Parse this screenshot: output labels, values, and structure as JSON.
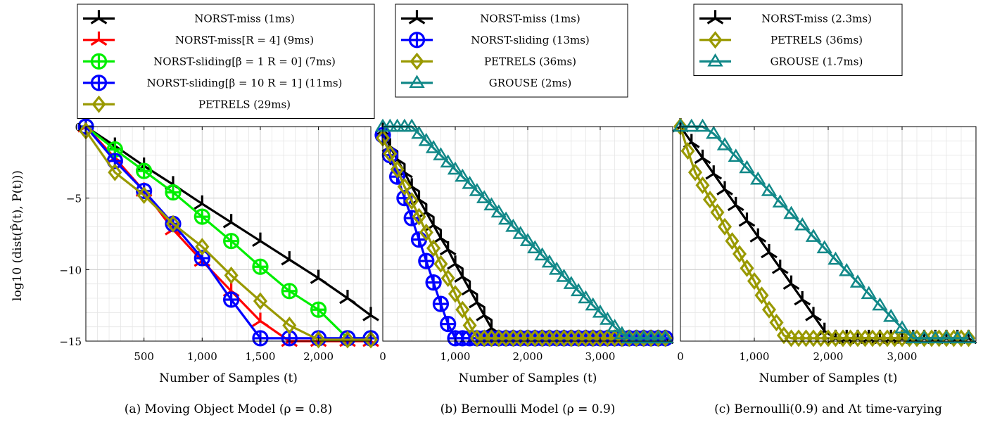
{
  "ylabel": "log10 (dist(P̂(t), P(t)))",
  "charts": [
    {
      "type": "line",
      "caption": "(a) Moving Object Model (ρ = 0.8)",
      "xlabel": "Number of Samples (t)",
      "xlim": [
        0,
        2450
      ],
      "ylim": [
        -15,
        0
      ],
      "xticks": [
        500,
        1000,
        1500,
        2000
      ],
      "xtick_labels": [
        "500",
        "1,000",
        "1,500",
        "2,000"
      ],
      "yticks": [
        0,
        -5,
        -10,
        -15
      ],
      "ytick_labels": [
        "0",
        "−5",
        "−10",
        "−15"
      ],
      "legend": "top",
      "grid": true,
      "series": [
        {
          "name": "NORST-miss (1ms)",
          "color": "#000000",
          "marker": "tri",
          "x": [
            0,
            250,
            500,
            750,
            1000,
            1250,
            1500,
            1750,
            2000,
            2250,
            2450
          ],
          "y": [
            0,
            -1.35,
            -2.75,
            -4.05,
            -5.4,
            -6.7,
            -8.0,
            -9.3,
            -10.6,
            -12.0,
            -13.2
          ]
        },
        {
          "name": "NORST-miss[R = 4] (9ms)",
          "color": "#ff0000",
          "marker": "tri",
          "x": [
            0,
            250,
            500,
            750,
            1000,
            1250,
            1500,
            1750,
            2000,
            2250,
            2450
          ],
          "y": [
            0,
            -2.2,
            -4.5,
            -7.2,
            -9.4,
            -11.5,
            -13.6,
            -15.0,
            -15.0,
            -15.0,
            -15.0
          ]
        },
        {
          "name": "NORST-sliding[β = 1 R = 0] (7ms)",
          "color": "#00ee00",
          "marker": "oplus",
          "x": [
            0,
            250,
            500,
            750,
            1000,
            1250,
            1500,
            1750,
            2000,
            2250,
            2450
          ],
          "y": [
            0,
            -1.6,
            -3.1,
            -4.6,
            -6.3,
            -8.0,
            -9.8,
            -11.5,
            -12.8,
            -14.8,
            -14.8
          ]
        },
        {
          "name": "NORST-sliding[β = 10 R = 1] (11ms)",
          "color": "#0000ff",
          "marker": "oplus",
          "x": [
            0,
            250,
            500,
            750,
            1000,
            1250,
            1500,
            1750,
            2000,
            2250,
            2450
          ],
          "y": [
            0,
            -2.4,
            -4.5,
            -6.8,
            -9.2,
            -12.1,
            -14.8,
            -14.8,
            -14.8,
            -14.8,
            -14.8
          ]
        },
        {
          "name": "PETRELS (29ms)",
          "color": "#999900",
          "marker": "diamond",
          "x": [
            0,
            250,
            500,
            750,
            1000,
            1250,
            1500,
            1750,
            2000,
            2250,
            2450
          ],
          "y": [
            -0.3,
            -3.2,
            -4.8,
            -6.8,
            -8.4,
            -10.4,
            -12.2,
            -13.9,
            -14.9,
            -14.9,
            -14.9
          ]
        }
      ]
    },
    {
      "type": "line",
      "caption": "(b) Bernoulli Model (ρ = 0.9)",
      "xlabel": "Number of Samples (t)",
      "xlim": [
        0,
        4000
      ],
      "ylim": [
        -15,
        0
      ],
      "xticks": [
        0,
        1000,
        2000,
        3000
      ],
      "xtick_labels": [
        "0",
        "1,000",
        "2,000",
        "3,000"
      ],
      "yticks": [],
      "ytick_labels": [],
      "legend": "top",
      "grid": true,
      "series": [
        {
          "name": "NORST-miss (1ms)",
          "color": "#000000",
          "marker": "tri",
          "x": [
            0,
            100,
            200,
            300,
            400,
            500,
            600,
            700,
            800,
            900,
            1000,
            1100,
            1200,
            1300,
            1400,
            1500,
            1600,
            1700,
            1800,
            1900,
            2000,
            2100,
            2200,
            2300,
            2400,
            2500,
            2600,
            2700,
            2800,
            2900,
            3000,
            3100,
            3200,
            3300,
            3400,
            3500,
            3600,
            3700,
            3800,
            3900
          ],
          "y": [
            -0.3,
            -1.4,
            -2.3,
            -3.2,
            -4.2,
            -5.1,
            -6.0,
            -6.9,
            -7.8,
            -8.6,
            -9.6,
            -10.5,
            -11.4,
            -12.3,
            -13.2,
            -14.1,
            -14.8,
            -14.8,
            -14.8,
            -14.8,
            -14.8,
            -14.8,
            -14.8,
            -14.8,
            -14.8,
            -14.8,
            -14.8,
            -14.8,
            -14.8,
            -14.8,
            -14.8,
            -14.8,
            -14.8,
            -14.8,
            -14.8,
            -14.8,
            -14.8,
            -14.8,
            -14.8,
            -14.8
          ]
        },
        {
          "name": "NORST-sliding (13ms)",
          "color": "#0000ff",
          "marker": "oplus",
          "x": [
            0,
            100,
            200,
            300,
            400,
            500,
            600,
            700,
            800,
            900,
            1000,
            1100,
            1200,
            1300,
            1400,
            1500,
            1600,
            1700,
            1800,
            1900,
            2000,
            2100,
            2200,
            2300,
            2400,
            2500,
            2600,
            2700,
            2800,
            2900,
            3000,
            3100,
            3200,
            3300,
            3400,
            3500,
            3600,
            3700,
            3800,
            3900
          ],
          "y": [
            -0.6,
            -2.0,
            -3.5,
            -5.0,
            -6.4,
            -7.9,
            -9.4,
            -10.9,
            -12.4,
            -13.8,
            -14.8,
            -14.8,
            -14.8,
            -14.8,
            -14.8,
            -14.8,
            -14.8,
            -14.8,
            -14.8,
            -14.8,
            -14.8,
            -14.8,
            -14.8,
            -14.8,
            -14.8,
            -14.8,
            -14.8,
            -14.8,
            -14.8,
            -14.8,
            -14.8,
            -14.8,
            -14.8,
            -14.8,
            -14.8,
            -14.8,
            -14.8,
            -14.8,
            -14.8,
            -14.8
          ]
        },
        {
          "name": "PETRELS (36ms)",
          "color": "#999900",
          "marker": "diamond",
          "x": [
            0,
            100,
            200,
            300,
            400,
            500,
            600,
            700,
            800,
            900,
            1000,
            1100,
            1200,
            1300,
            1400,
            1500,
            1600,
            1700,
            1800,
            1900,
            2000,
            2100,
            2200,
            2300,
            2400,
            2500,
            2600,
            2700,
            2800,
            2900,
            3000,
            3100,
            3200,
            3300,
            3400,
            3500,
            3600,
            3700,
            3800,
            3900
          ],
          "y": [
            -0.8,
            -1.9,
            -3.0,
            -4.2,
            -5.2,
            -6.3,
            -7.4,
            -8.5,
            -9.6,
            -10.6,
            -11.7,
            -12.8,
            -13.9,
            -14.8,
            -14.8,
            -14.8,
            -14.8,
            -14.8,
            -14.8,
            -14.8,
            -14.8,
            -14.8,
            -14.8,
            -14.8,
            -14.8,
            -14.8,
            -14.8,
            -14.8,
            -14.8,
            -14.8,
            -14.8,
            -14.8,
            -14.8,
            -14.8,
            -14.8,
            -14.8,
            -14.8,
            -14.8,
            -14.8,
            -14.8
          ]
        },
        {
          "name": "GROUSE (2ms)",
          "color": "#118888",
          "marker": "triangle",
          "x": [
            0,
            100,
            200,
            300,
            400,
            500,
            600,
            700,
            800,
            900,
            1000,
            1100,
            1200,
            1300,
            1400,
            1500,
            1600,
            1700,
            1800,
            1900,
            2000,
            2100,
            2200,
            2300,
            2400,
            2500,
            2600,
            2700,
            2800,
            2900,
            3000,
            3100,
            3200,
            3300,
            3400,
            3500,
            3600,
            3700,
            3800,
            3900
          ],
          "y": [
            0,
            0,
            0,
            0,
            0,
            -0.5,
            -1.0,
            -1.5,
            -2.0,
            -2.5,
            -3.0,
            -3.5,
            -4.0,
            -4.5,
            -5.0,
            -5.5,
            -6.0,
            -6.5,
            -7.0,
            -7.5,
            -8.0,
            -8.5,
            -9.0,
            -9.5,
            -10.0,
            -10.5,
            -11.0,
            -11.5,
            -12.0,
            -12.5,
            -13.0,
            -13.5,
            -14.0,
            -14.5,
            -14.8,
            -14.8,
            -14.8,
            -14.8,
            -14.8,
            -14.8
          ]
        }
      ]
    },
    {
      "type": "line",
      "caption": "(c) Bernoulli(0.9) and Λt time-varying",
      "xlabel": "Number of Samples (t)",
      "xlim": [
        0,
        4000
      ],
      "ylim": [
        -15,
        0
      ],
      "xticks": [
        0,
        1000,
        2000,
        3000
      ],
      "xtick_labels": [
        "0",
        "1,000",
        "2,000",
        "3,000"
      ],
      "yticks": [],
      "ytick_labels": [],
      "legend": "top",
      "grid": true,
      "series": [
        {
          "name": "NORST-miss (2.3ms)",
          "color": "#000000",
          "marker": "tri",
          "x": [
            0,
            150,
            300,
            450,
            600,
            750,
            900,
            1050,
            1200,
            1350,
            1500,
            1650,
            1800,
            1950,
            2100,
            2250,
            2400,
            2550,
            2700,
            2850,
            3000,
            3150,
            3300,
            3450,
            3600,
            3750,
            3900
          ],
          "y": [
            0,
            -1.1,
            -2.2,
            -3.3,
            -4.4,
            -5.5,
            -6.6,
            -7.7,
            -8.8,
            -9.9,
            -11.0,
            -12.1,
            -13.2,
            -14.3,
            -14.8,
            -14.8,
            -14.8,
            -14.8,
            -14.8,
            -14.8,
            -14.8,
            -14.8,
            -14.8,
            -14.8,
            -14.8,
            -14.8,
            -14.8
          ]
        },
        {
          "name": "PETRELS (36ms)",
          "color": "#999900",
          "marker": "diamond",
          "x": [
            0,
            100,
            200,
            300,
            400,
            500,
            600,
            700,
            800,
            900,
            1000,
            1100,
            1200,
            1300,
            1400,
            1500,
            1600,
            1700,
            1800,
            1900,
            2000,
            2100,
            2200,
            2300,
            2400,
            2500,
            2600,
            2700,
            2800,
            2900,
            3000,
            3100,
            3200,
            3300,
            3400,
            3500,
            3600,
            3700,
            3800,
            3900
          ],
          "y": [
            0,
            -1.7,
            -3.2,
            -4.1,
            -5.1,
            -6.0,
            -7.0,
            -8.0,
            -8.9,
            -9.9,
            -10.8,
            -11.8,
            -12.8,
            -13.7,
            -14.6,
            -14.8,
            -14.8,
            -14.8,
            -14.8,
            -14.8,
            -14.8,
            -14.8,
            -14.8,
            -14.8,
            -14.8,
            -14.8,
            -14.8,
            -14.8,
            -14.8,
            -14.8,
            -14.8,
            -14.8,
            -14.8,
            -14.8,
            -14.8,
            -14.8,
            -14.8,
            -14.8,
            -14.8,
            -14.8
          ]
        },
        {
          "name": "GROUSE (1.7ms)",
          "color": "#118888",
          "marker": "triangle",
          "x": [
            0,
            150,
            300,
            450,
            600,
            750,
            900,
            1050,
            1200,
            1350,
            1500,
            1650,
            1800,
            1950,
            2100,
            2250,
            2400,
            2550,
            2700,
            2850,
            3000,
            3150,
            3300,
            3450,
            3600,
            3750,
            3900
          ],
          "y": [
            0,
            0,
            0,
            -0.5,
            -1.3,
            -2.1,
            -2.9,
            -3.7,
            -4.5,
            -5.3,
            -6.1,
            -6.9,
            -7.7,
            -8.5,
            -9.3,
            -10.1,
            -10.9,
            -11.7,
            -12.5,
            -13.3,
            -14.1,
            -14.8,
            -14.8,
            -14.8,
            -14.8,
            -14.8,
            -14.8
          ]
        }
      ]
    }
  ]
}
